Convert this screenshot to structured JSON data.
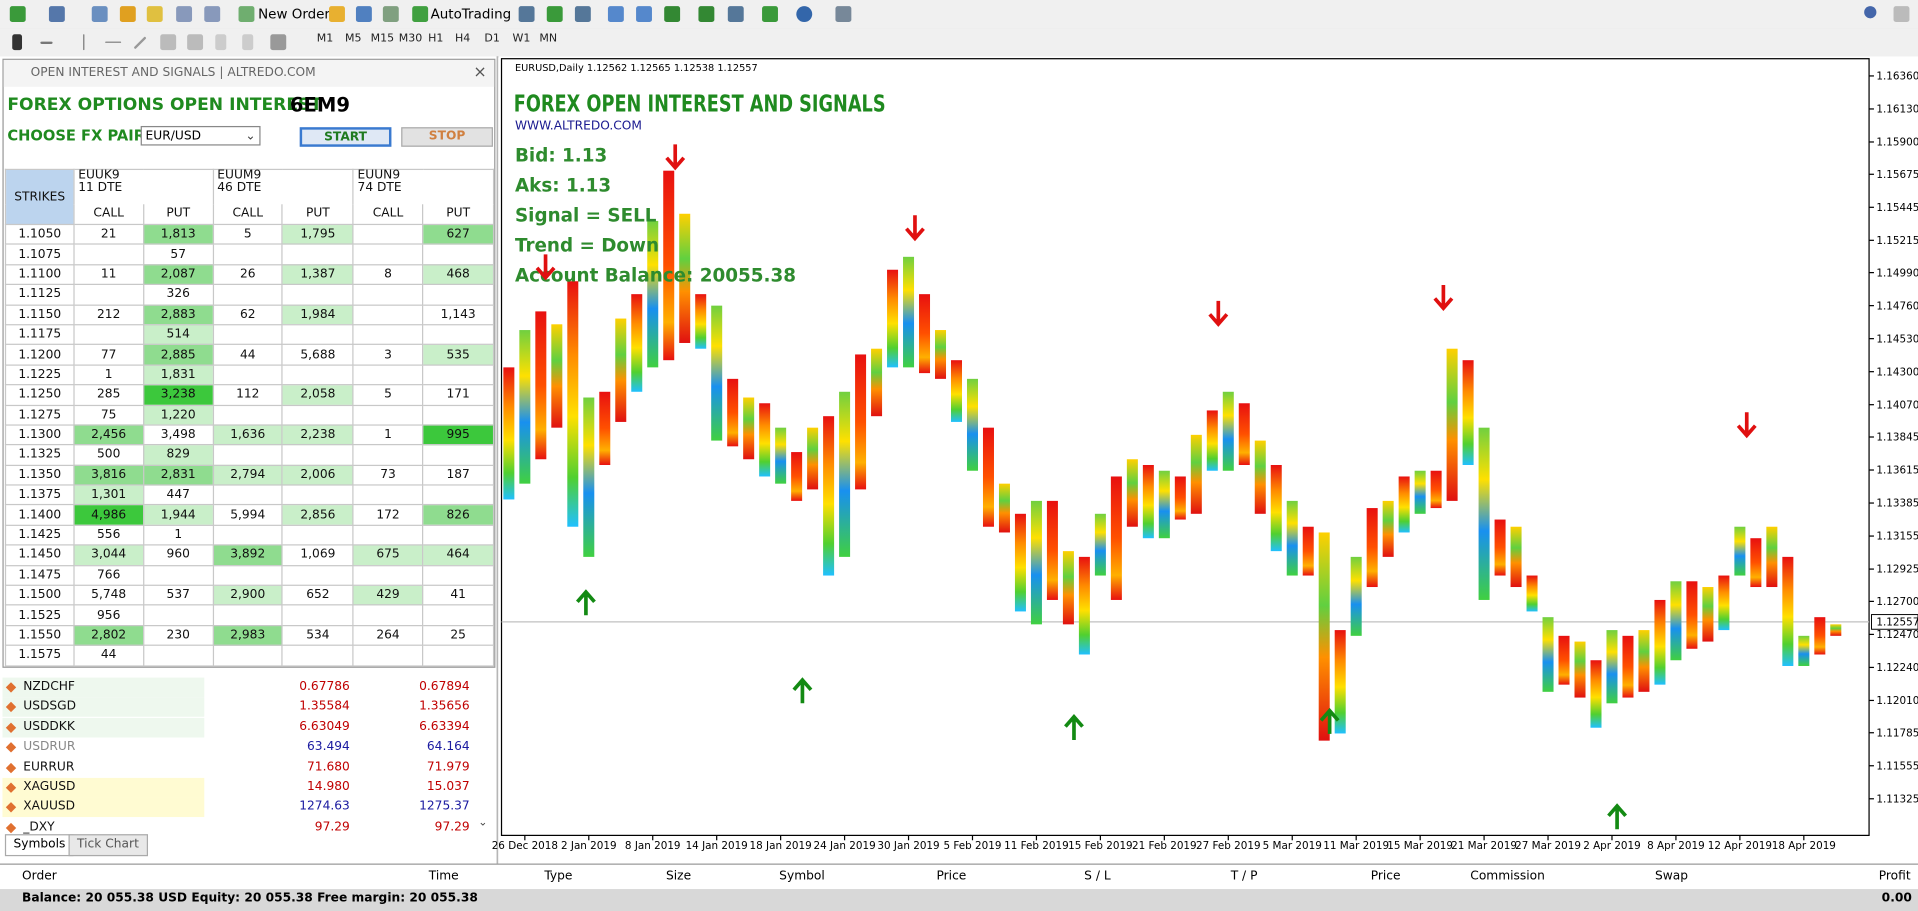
{
  "toolbar": {
    "new_order": "New Order",
    "autotrading": "AutoTrading",
    "timeframes": [
      "M1",
      "M5",
      "M15",
      "M30",
      "H1",
      "H4",
      "D1",
      "W1",
      "MN"
    ]
  },
  "oi_panel": {
    "window_title": "OPEN INTEREST AND SIGNALS | ALTREDO.COM",
    "heading": "FOREX OPTIONS OPEN INTEREST",
    "contract": "6EM9",
    "pair_label": "CHOOSE FX PAIR",
    "pair": "EUR/USD",
    "start": "START",
    "stop": "STOP",
    "table": {
      "strikes_header": "STRIKES",
      "expiries": [
        {
          "name": "EUUK9",
          "dte": "11 DTE"
        },
        {
          "name": "EUUM9",
          "dte": "46 DTE"
        },
        {
          "name": "EUUN9",
          "dte": "74 DTE"
        }
      ],
      "call": "CALL",
      "put": "PUT",
      "rows": [
        [
          "1.1050",
          "21",
          "1,813",
          "5",
          "1,795",
          null,
          "627"
        ],
        [
          "1.1075",
          null,
          "57",
          null,
          null,
          null,
          null
        ],
        [
          "1.1100",
          "11",
          "2,087",
          "26",
          "1,387",
          "8",
          "468"
        ],
        [
          "1.1125",
          null,
          "326",
          null,
          null,
          null,
          null
        ],
        [
          "1.1150",
          "212",
          "2,883",
          "62",
          "1,984",
          null,
          "1,143"
        ],
        [
          "1.1175",
          null,
          "514",
          null,
          null,
          null,
          null
        ],
        [
          "1.1200",
          "77",
          "2,885",
          "44",
          "5,688",
          "3",
          "535"
        ],
        [
          "1.1225",
          "1",
          "1,831",
          null,
          null,
          null,
          null
        ],
        [
          "1.1250",
          "285",
          "3,238",
          "112",
          "2,058",
          "5",
          "171"
        ],
        [
          "1.1275",
          "75",
          "1,220",
          null,
          null,
          null,
          null
        ],
        [
          "1.1300",
          "2,456",
          "3,498",
          "1,636",
          "2,238",
          "1",
          "995"
        ],
        [
          "1.1325",
          "500",
          "829",
          null,
          null,
          null,
          null
        ],
        [
          "1.1350",
          "3,816",
          "2,831",
          "2,794",
          "2,006",
          "73",
          "187"
        ],
        [
          "1.1375",
          "1,301",
          "447",
          null,
          null,
          null,
          null
        ],
        [
          "1.1400",
          "4,986",
          "1,944",
          "5,994",
          "2,856",
          "172",
          "826"
        ],
        [
          "1.1425",
          "556",
          "1",
          null,
          null,
          null,
          null
        ],
        [
          "1.1450",
          "3,044",
          "960",
          "3,892",
          "1,069",
          "675",
          "464"
        ],
        [
          "1.1475",
          "766",
          null,
          null,
          null,
          null,
          null
        ],
        [
          "1.1500",
          "5,748",
          "537",
          "2,900",
          "652",
          "429",
          "41"
        ],
        [
          "1.1525",
          "956",
          null,
          null,
          null,
          null,
          null
        ],
        [
          "1.1550",
          "2,802",
          "230",
          "2,983",
          "534",
          "264",
          "25"
        ],
        [
          "1.1575",
          "44",
          null,
          null,
          null,
          null,
          null
        ]
      ],
      "shading": [
        [
          null,
          null,
          "#8fdc8f",
          null,
          "#c9efc9",
          null,
          "#8fdc8f"
        ],
        [
          null,
          null,
          null,
          null,
          null,
          null,
          null
        ],
        [
          null,
          null,
          "#8fdc8f",
          null,
          "#c9efc9",
          null,
          "#c9efc9"
        ],
        [
          null,
          null,
          null,
          null,
          null,
          null,
          null
        ],
        [
          null,
          null,
          "#8fdc8f",
          null,
          "#c9efc9",
          null,
          null
        ],
        [
          null,
          null,
          "#c9efc9",
          null,
          null,
          null,
          null
        ],
        [
          null,
          null,
          "#8fdc8f",
          null,
          null,
          null,
          "#c9efc9"
        ],
        [
          null,
          null,
          "#c9efc9",
          null,
          null,
          null,
          null
        ],
        [
          null,
          null,
          "#3cc83c",
          null,
          "#c9efc9",
          null,
          null
        ],
        [
          null,
          null,
          "#c9efc9",
          null,
          null,
          null,
          null
        ],
        [
          null,
          "#8fdc8f",
          null,
          "#c9efc9",
          "#c9efc9",
          null,
          "#3cc83c"
        ],
        [
          null,
          null,
          "#c9efc9",
          null,
          null,
          null,
          null
        ],
        [
          null,
          "#8fdc8f",
          "#8fdc8f",
          "#c9efc9",
          "#c9efc9",
          null,
          null
        ],
        [
          null,
          "#c9efc9",
          null,
          null,
          null,
          null,
          null
        ],
        [
          null,
          "#3cc83c",
          "#c9efc9",
          null,
          "#c9efc9",
          null,
          "#8fdc8f"
        ],
        [
          null,
          null,
          null,
          null,
          null,
          null,
          null
        ],
        [
          null,
          "#c9efc9",
          null,
          "#8fdc8f",
          null,
          "#c9efc9",
          "#c9efc9"
        ],
        [
          null,
          null,
          null,
          null,
          null,
          null,
          null
        ],
        [
          null,
          null,
          null,
          "#c9efc9",
          null,
          "#c9efc9",
          null
        ],
        [
          null,
          null,
          null,
          null,
          null,
          null,
          null
        ],
        [
          null,
          "#8fdc8f",
          null,
          "#8fdc8f",
          null,
          null,
          null
        ],
        [
          null,
          null,
          null,
          null,
          null,
          null,
          null
        ]
      ]
    }
  },
  "symbols": {
    "rows": [
      {
        "name": "NZDCHF",
        "bid": "0.67786",
        "ask": "0.67894",
        "color": "#c00000",
        "bg": "#eef8ee"
      },
      {
        "name": "USDSGD",
        "bid": "1.35584",
        "ask": "1.35656",
        "color": "#c00000",
        "bg": "#eef8ee"
      },
      {
        "name": "USDDKK",
        "bid": "6.63049",
        "ask": "6.63394",
        "color": "#c00000",
        "bg": "#eef8ee"
      },
      {
        "name": "USDRUR",
        "bid": "63.494",
        "ask": "64.164",
        "color": "#1a1aa0",
        "bg": "#ffffff"
      },
      {
        "name": "EURRUR",
        "bid": "71.680",
        "ask": "71.979",
        "color": "#c00000",
        "bg": "#ffffff"
      },
      {
        "name": "XAGUSD",
        "bid": "14.980",
        "ask": "15.037",
        "color": "#c00000",
        "bg": "#fffbd2"
      },
      {
        "name": "XAUUSD",
        "bid": "1274.63",
        "ask": "1275.37",
        "color": "#1a1aa0",
        "bg": "#fffbd2"
      },
      {
        "name": "_DXY",
        "bid": "97.29",
        "ask": "97.29",
        "color": "#c00000",
        "bg": "#ffffff"
      }
    ],
    "tabs": [
      "Symbols",
      "Tick Chart"
    ]
  },
  "chart": {
    "type": "candlestick",
    "header": "EURUSD,Daily  1.12562 1.12565 1.12538 1.12557",
    "title": "FOREX OPEN INTEREST AND SIGNALS",
    "website": "WWW.ALTREDO.COM",
    "info": [
      "Bid: 1.13",
      "Aks: 1.13",
      "Signal  = SELL",
      "Trend = Down",
      "Account Balance: 20055.38"
    ],
    "ylim": [
      1.1107,
      1.1648
    ],
    "yticks": [
      {
        "value": 1.1636,
        "label": "1.16360"
      },
      {
        "value": 1.1613,
        "label": "1.16130"
      },
      {
        "value": 1.159,
        "label": "1.15900"
      },
      1.15675,
      1.15445,
      1.15215,
      {
        "value": 1.1499,
        "label": "1.14990"
      },
      {
        "value": 1.1476,
        "label": "1.14760"
      },
      {
        "value": 1.1453,
        "label": "1.14530"
      },
      {
        "value": 1.143,
        "label": "1.14300"
      },
      {
        "value": 1.1407,
        "label": "1.14070"
      },
      1.13845,
      1.13615,
      1.13385,
      1.13155,
      1.12925,
      {
        "value": 1.127,
        "label": "1.12700"
      },
      {
        "value": 1.1247,
        "label": "1.12470"
      },
      {
        "value": 1.1224,
        "label": "1.12240"
      },
      {
        "value": 1.1201,
        "label": "1.12010"
      },
      1.11785,
      1.11555,
      1.11325
    ],
    "current_price": 1.12557,
    "dates": [
      "26 Dec 2018",
      "2 Jan 2019",
      "8 Jan 2019",
      "14 Jan 2019",
      "18 Jan 2019",
      "24 Jan 2019",
      "30 Jan 2019",
      "5 Feb 2019",
      "11 Feb 2019",
      "15 Feb 2019",
      "21 Feb 2019",
      "27 Feb 2019",
      "5 Mar 2019",
      "11 Mar 2019",
      "15 Mar 2019",
      "21 Mar 2019",
      "27 Mar 2019",
      "2 Apr 2019",
      "8 Apr 2019",
      "12 Apr 2019",
      "18 Apr 2019"
    ],
    "bars": {
      "high": [
        1.1433,
        1.1459,
        1.1472,
        1.1463,
        1.1493,
        1.1412,
        1.1416,
        1.1467,
        1.1484,
        1.1535,
        1.157,
        1.154,
        1.1484,
        1.1476,
        1.1425,
        1.1412,
        1.1408,
        1.1391,
        1.1374,
        1.1391,
        1.1399,
        1.1416,
        1.1442,
        1.1446,
        1.1501,
        1.151,
        1.1484,
        1.1459,
        1.1438,
        1.1425,
        1.1391,
        1.1352,
        1.1331,
        1.134,
        1.134,
        1.1305,
        1.1301,
        1.1331,
        1.1357,
        1.1369,
        1.1365,
        1.1361,
        1.1357,
        1.1386,
        1.1403,
        1.1416,
        1.1408,
        1.1382,
        1.1365,
        1.134,
        1.1322,
        1.1318,
        1.125,
        1.1301,
        1.1335,
        1.134,
        1.1357,
        1.1361,
        1.1361,
        1.1446,
        1.1438,
        1.1391,
        1.1327,
        1.1322,
        1.1288,
        1.1259,
        1.1246,
        1.1242,
        1.1229,
        1.125,
        1.1246,
        1.125,
        1.1271,
        1.1284,
        1.1284,
        1.128,
        1.1288,
        1.1322,
        1.1314,
        1.1322,
        1.1301,
        1.1246,
        1.1259,
        1.1254
      ],
      "low": [
        1.1341,
        1.1352,
        1.1369,
        1.1391,
        1.1322,
        1.1301,
        1.1365,
        1.1395,
        1.1416,
        1.1433,
        1.1438,
        1.145,
        1.1446,
        1.1382,
        1.1378,
        1.1369,
        1.1357,
        1.1352,
        1.134,
        1.1348,
        1.1288,
        1.1301,
        1.1348,
        1.1399,
        1.1433,
        1.1433,
        1.1429,
        1.1425,
        1.1395,
        1.1361,
        1.1322,
        1.1318,
        1.1263,
        1.1254,
        1.1271,
        1.1254,
        1.1233,
        1.1288,
        1.1271,
        1.1322,
        1.1314,
        1.1314,
        1.1327,
        1.1331,
        1.1361,
        1.1361,
        1.1365,
        1.1331,
        1.1305,
        1.1288,
        1.1288,
        1.1173,
        1.1178,
        1.1246,
        1.128,
        1.1301,
        1.1318,
        1.1331,
        1.1335,
        1.134,
        1.1365,
        1.1271,
        1.1288,
        1.128,
        1.1263,
        1.1207,
        1.1212,
        1.1203,
        1.1182,
        1.1199,
        1.1203,
        1.1207,
        1.1212,
        1.1229,
        1.1237,
        1.1242,
        1.125,
        1.1288,
        1.128,
        1.128,
        1.1225,
        1.1225,
        1.1233,
        1.1246
      ]
    }
  },
  "terminal": {
    "columns": [
      "Order",
      "Time",
      "Type",
      "Size",
      "Symbol",
      "Price",
      "S / L",
      "T / P",
      "Price",
      "Commission",
      "Swap",
      "Profit"
    ],
    "status": "Balance: 20 055.38 USD  Equity: 20 055.38  Free margin: 20 055.38",
    "profit": "0.00"
  }
}
